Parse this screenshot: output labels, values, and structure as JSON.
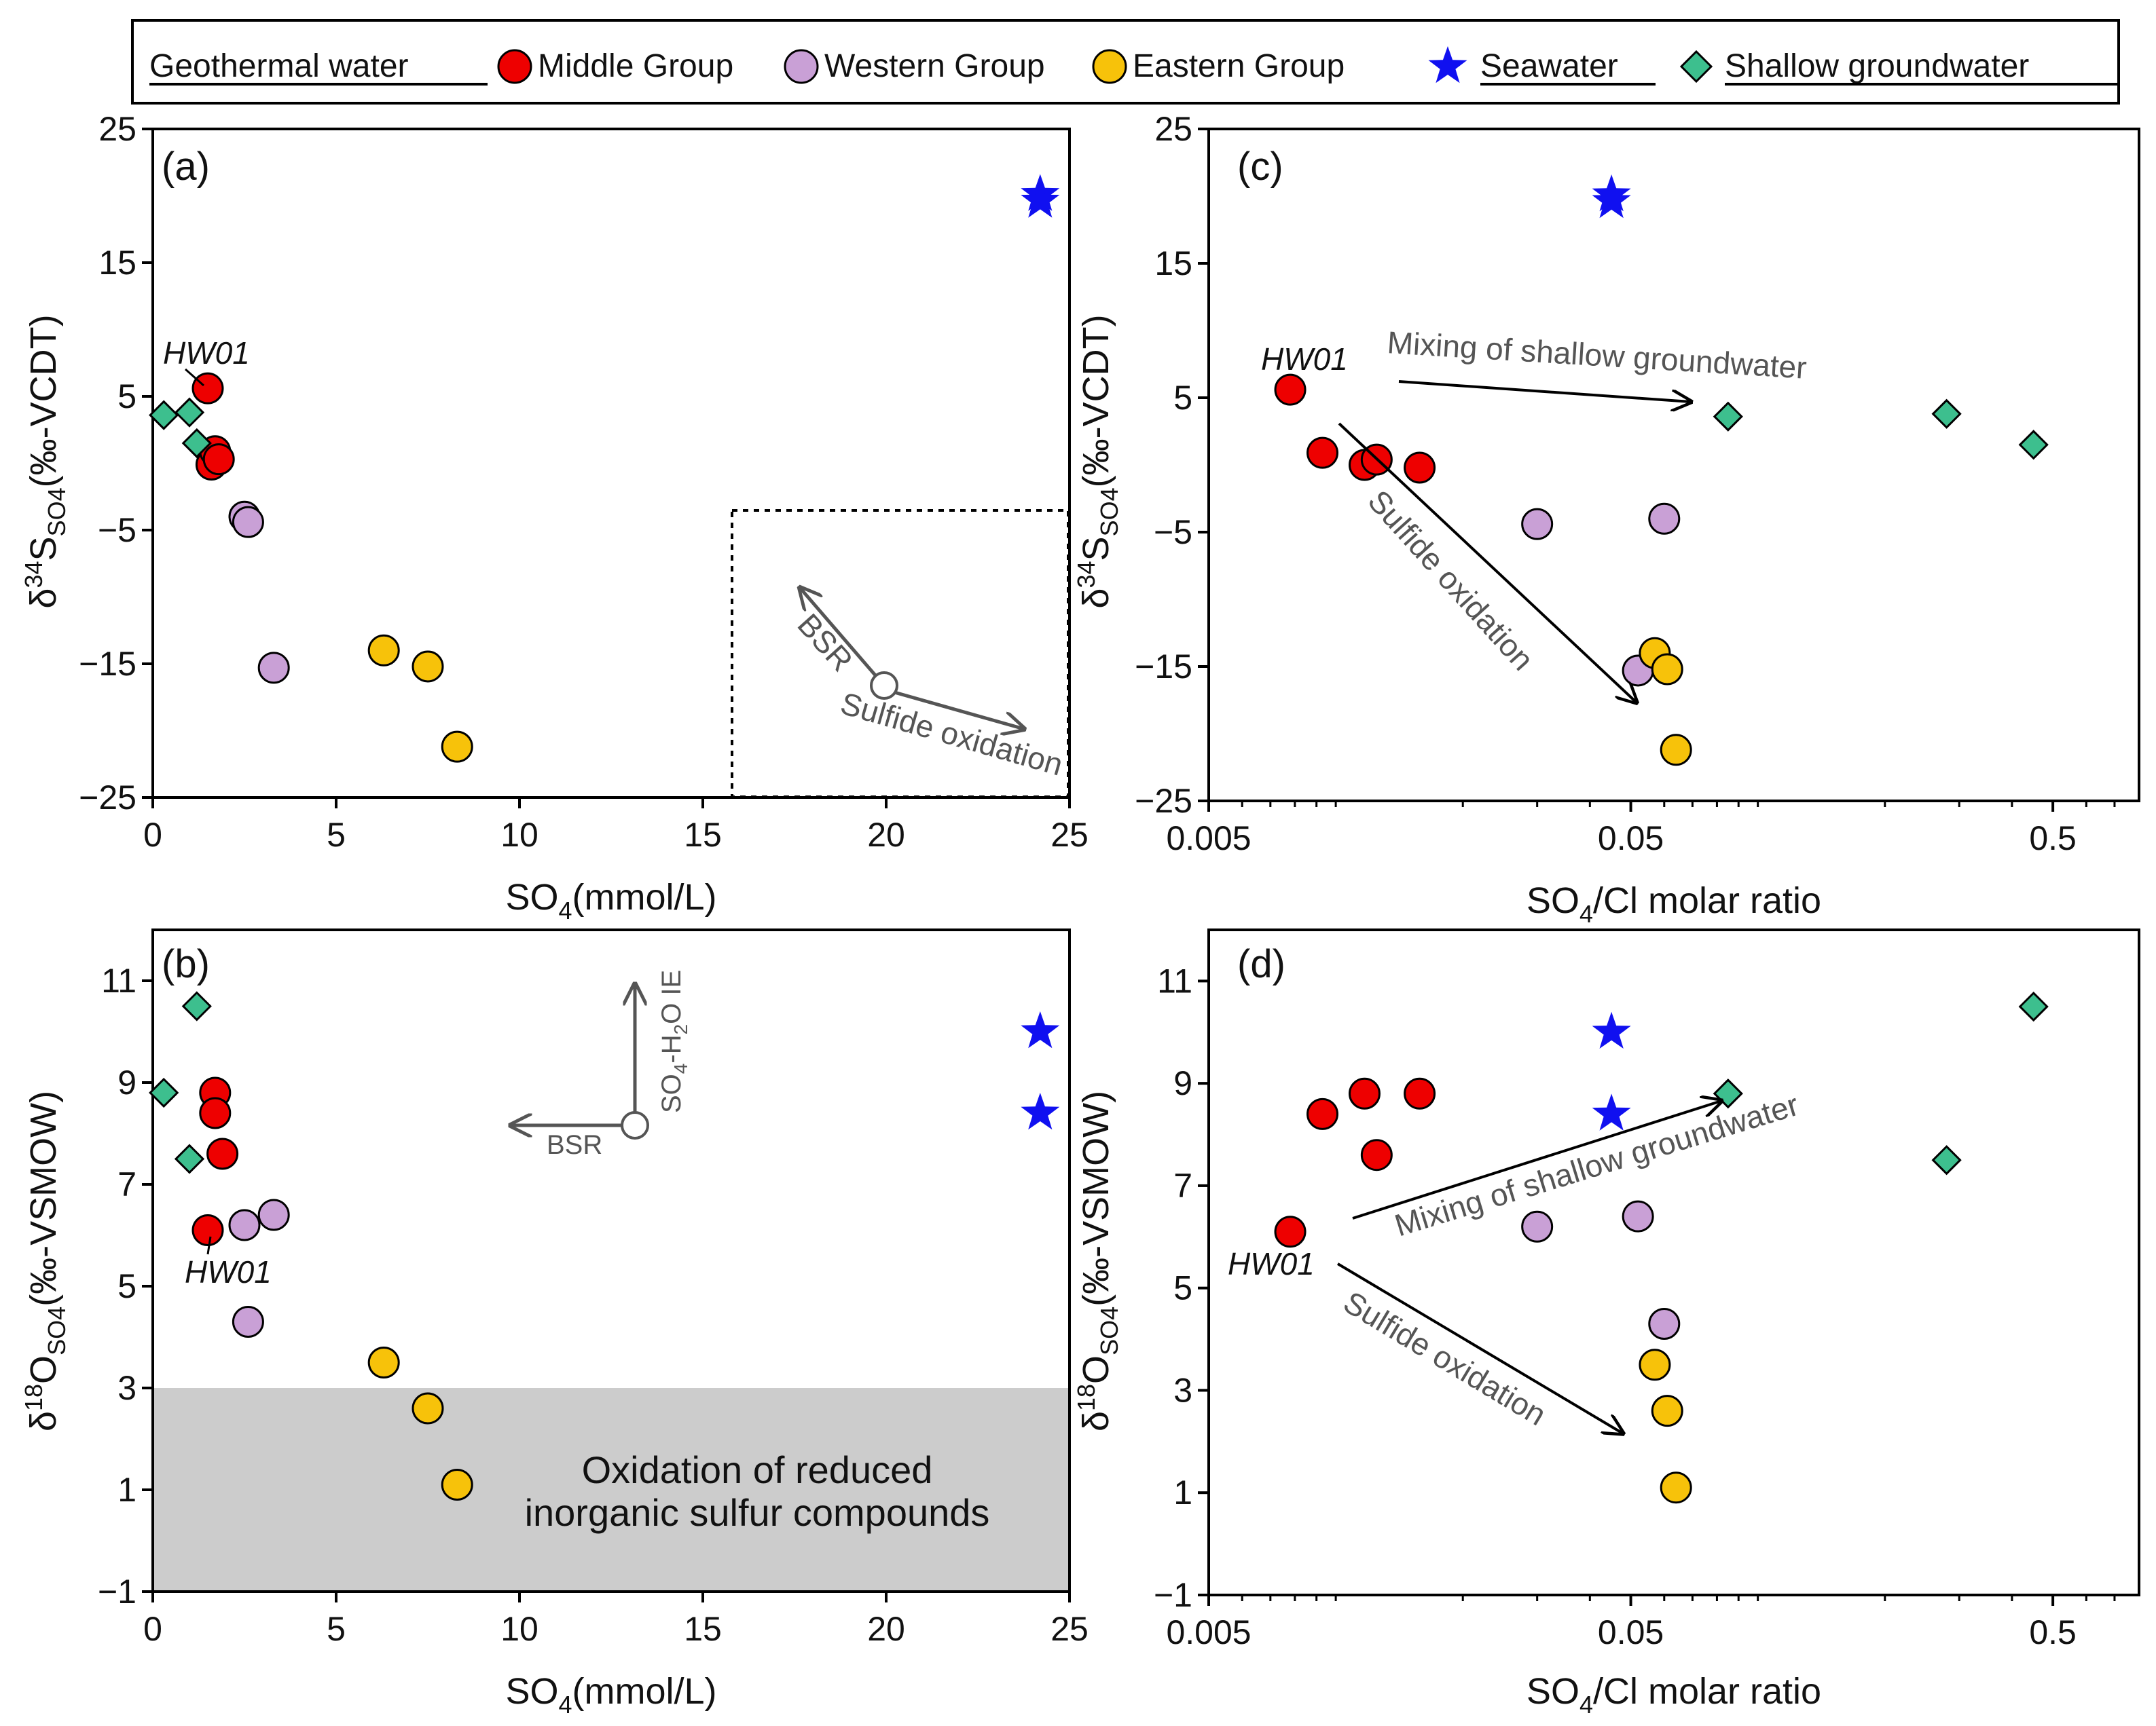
{
  "colors": {
    "middle": "#ee0000",
    "western": "#c9a0d6",
    "eastern": "#f7c20a",
    "seawater": "#1010f0",
    "shallow": "#3dbf8e",
    "shade": "#cccccc",
    "arrow_gray": "#555555"
  },
  "legend": {
    "geothermal_water": "Geothermal water",
    "middle_group": "Middle Group",
    "western_group": "Western Group",
    "eastern_group": "Eastern Group",
    "seawater": "Seawater",
    "shallow_groundwater": "Shallow groundwater"
  },
  "chart_data": [
    {
      "id": "a",
      "panel_label": "(a)",
      "type": "scatter",
      "xscale": "linear",
      "xlim": [
        0,
        25
      ],
      "ylim": [
        -25,
        25
      ],
      "xticks": [
        0,
        5,
        10,
        15,
        20,
        25
      ],
      "xtick_labels": [
        "0",
        "5",
        "10",
        "15",
        "20",
        "25"
      ],
      "yticks": [
        25,
        15,
        5,
        -5,
        -15,
        -25
      ],
      "ytick_labels": [
        "25",
        "15",
        "5",
        "−5",
        "−15",
        "−25"
      ],
      "xlabel": {
        "main": "SO",
        "sub": "4",
        "tail": "(mmol/L)"
      },
      "ylabel": {
        "pre": "δ",
        "sup": "34",
        "main": "S",
        "sub": "SO4",
        "tail": "(‰-VCDT)"
      },
      "series": [
        {
          "name": "Middle Group",
          "marker": "circle",
          "x": [
            1.5,
            1.6,
            1.7,
            1.8
          ],
          "y": [
            5.6,
            -0.1,
            0.9,
            0.3
          ]
        },
        {
          "name": "Western Group",
          "marker": "circle",
          "x": [
            2.5,
            2.6,
            3.3
          ],
          "y": [
            -4.0,
            -4.4,
            -15.3
          ]
        },
        {
          "name": "Eastern Group",
          "marker": "circle",
          "x": [
            6.3,
            7.5,
            8.3
          ],
          "y": [
            -14.0,
            -15.2,
            -21.2
          ]
        },
        {
          "name": "Seawater",
          "marker": "star",
          "x": [
            24.2,
            24.2
          ],
          "y": [
            20.1,
            19.6
          ]
        },
        {
          "name": "Shallow groundwater",
          "marker": "diamond",
          "x": [
            0.3,
            1.0,
            1.2
          ],
          "y": [
            3.6,
            3.8,
            1.5
          ]
        }
      ],
      "annotations": {
        "hw01": "HW01",
        "bsr": "BSR",
        "sulfide": "Sulfide oxidation"
      }
    },
    {
      "id": "b",
      "panel_label": "(b)",
      "type": "scatter",
      "xscale": "linear",
      "xlim": [
        0,
        25
      ],
      "ylim": [
        -1,
        12
      ],
      "xticks": [
        0,
        5,
        10,
        15,
        20,
        25
      ],
      "xtick_labels": [
        "0",
        "5",
        "10",
        "15",
        "20",
        "25"
      ],
      "yticks": [
        11,
        9,
        7,
        5,
        3,
        1,
        -1
      ],
      "ytick_labels": [
        "11",
        "9",
        "7",
        "5",
        "3",
        "1",
        "−1"
      ],
      "xlabel": {
        "main": "SO",
        "sub": "4",
        "tail": "(mmol/L)"
      },
      "ylabel": {
        "pre": "δ",
        "sup": "18",
        "main": "O",
        "sub": "SO4",
        "tail": "(‰-VSMOW)"
      },
      "series": [
        {
          "name": "Middle Group",
          "marker": "circle",
          "x": [
            1.5,
            1.7,
            1.7,
            1.9
          ],
          "y": [
            6.1,
            8.8,
            8.4,
            7.6
          ]
        },
        {
          "name": "Western Group",
          "marker": "circle",
          "x": [
            2.5,
            2.6,
            3.3
          ],
          "y": [
            6.2,
            4.3,
            6.4
          ]
        },
        {
          "name": "Eastern Group",
          "marker": "circle",
          "x": [
            6.3,
            7.5,
            8.3
          ],
          "y": [
            3.5,
            2.6,
            1.1
          ]
        },
        {
          "name": "Seawater",
          "marker": "star",
          "x": [
            24.2,
            24.2
          ],
          "y": [
            10.0,
            8.4
          ]
        },
        {
          "name": "Shallow groundwater",
          "marker": "diamond",
          "x": [
            0.3,
            1.0,
            1.2
          ],
          "y": [
            8.8,
            7.5,
            10.5
          ]
        }
      ],
      "shaded_region": {
        "y_from": -1,
        "y_to": 3,
        "label_line1": "Oxidation of reduced",
        "label_line2": "inorganic sulfur compounds"
      },
      "annotations": {
        "hw01": "HW01",
        "bsr": "BSR",
        "ie": {
          "main": "SO",
          "sub4": "4",
          "mid": "-H",
          "sub2": "2",
          "tail": "O IE"
        }
      }
    },
    {
      "id": "c",
      "panel_label": "(c)",
      "type": "scatter",
      "xscale": "log",
      "xlim": [
        0.005,
        0.8
      ],
      "ylim": [
        -25,
        25
      ],
      "xticks": [
        0.005,
        0.05,
        0.5
      ],
      "xtick_labels": [
        "0.005",
        "0.05",
        "0.5"
      ],
      "yticks": [
        25,
        15,
        5,
        -5,
        -15,
        -25
      ],
      "ytick_labels": [
        "25",
        "15",
        "5",
        "−5",
        "−15",
        "−25"
      ],
      "xlabel": {
        "main": "SO",
        "sub": "4",
        "tail": "/Cl molar ratio"
      },
      "ylabel": {
        "pre": "δ",
        "sup": "34",
        "main": "S",
        "sub": "SO4",
        "tail": "(‰-VCDT)"
      },
      "series": [
        {
          "name": "Middle Group",
          "marker": "circle",
          "x": [
            0.0078,
            0.0093,
            0.0117,
            0.0125,
            0.0158
          ],
          "y": [
            5.6,
            0.9,
            0.0,
            0.4,
            -0.2
          ]
        },
        {
          "name": "Western Group",
          "marker": "circle",
          "x": [
            0.03,
            0.052,
            0.06
          ],
          "y": [
            -4.4,
            -15.3,
            -4.0
          ]
        },
        {
          "name": "Eastern Group",
          "marker": "circle",
          "x": [
            0.057,
            0.061,
            0.064
          ],
          "y": [
            -14.0,
            -15.2,
            -21.2
          ]
        },
        {
          "name": "Seawater",
          "marker": "star",
          "x": [
            0.045,
            0.045
          ],
          "y": [
            20.1,
            19.6
          ]
        },
        {
          "name": "Shallow groundwater",
          "marker": "diamond",
          "x": [
            0.085,
            0.28,
            0.45
          ],
          "y": [
            3.6,
            3.8,
            1.5
          ]
        }
      ],
      "annotations": {
        "hw01": "HW01",
        "mixing": "Mixing of shallow groundwater",
        "sulfide": "Sulfide oxidation"
      }
    },
    {
      "id": "d",
      "panel_label": "(d)",
      "type": "scatter",
      "xscale": "log",
      "xlim": [
        0.005,
        0.8
      ],
      "ylim": [
        -1,
        12
      ],
      "xticks": [
        0.005,
        0.05,
        0.5
      ],
      "xtick_labels": [
        "0.005",
        "0.05",
        "0.5"
      ],
      "yticks": [
        11,
        9,
        7,
        5,
        3,
        1,
        -1
      ],
      "ytick_labels": [
        "11",
        "9",
        "7",
        "5",
        "3",
        "1",
        "−1"
      ],
      "xlabel": {
        "main": "SO",
        "sub": "4",
        "tail": "/Cl molar ratio"
      },
      "ylabel": {
        "pre": "δ",
        "sup": "18",
        "main": "O",
        "sub": "SO4",
        "tail": "(‰-VSMOW)"
      },
      "series": [
        {
          "name": "Middle Group",
          "marker": "circle",
          "x": [
            0.0078,
            0.0093,
            0.0117,
            0.0125,
            0.0158
          ],
          "y": [
            6.1,
            8.4,
            8.8,
            7.6,
            8.8
          ]
        },
        {
          "name": "Western Group",
          "marker": "circle",
          "x": [
            0.03,
            0.052,
            0.06
          ],
          "y": [
            6.2,
            6.4,
            4.3
          ]
        },
        {
          "name": "Eastern Group",
          "marker": "circle",
          "x": [
            0.057,
            0.061,
            0.064
          ],
          "y": [
            3.5,
            2.6,
            1.1
          ]
        },
        {
          "name": "Seawater",
          "marker": "star",
          "x": [
            0.045,
            0.045
          ],
          "y": [
            10.0,
            8.4
          ]
        },
        {
          "name": "Shallow groundwater",
          "marker": "diamond",
          "x": [
            0.085,
            0.28,
            0.45
          ],
          "y": [
            8.8,
            7.5,
            10.5
          ]
        }
      ],
      "annotations": {
        "hw01": "HW01",
        "mixing": "Mixing of shallow groundwater",
        "sulfide": "Sulfide oxidation"
      }
    }
  ]
}
